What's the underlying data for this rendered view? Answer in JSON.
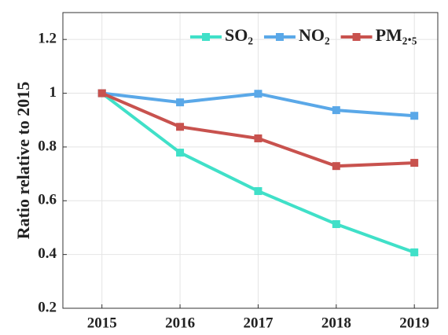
{
  "chart_data": {
    "type": "line",
    "ylabel": "Ratio relative to 2015",
    "x": [
      2015,
      2016,
      2017,
      2018,
      2019
    ],
    "xlim": [
      2014.5,
      2019.3
    ],
    "xticks": [
      2015,
      2016,
      2017,
      2018,
      2019
    ],
    "ylim": [
      0.2,
      1.3
    ],
    "yticks": [
      0.2,
      0.4,
      0.6,
      0.8,
      1,
      1.2
    ],
    "grid": true,
    "legend": "top-right",
    "series": [
      {
        "name": "SO₂",
        "color": "#40e0c8",
        "values": [
          1,
          0.779,
          0.636,
          0.513,
          0.408
        ]
      },
      {
        "name": "NO₂",
        "color": "#5aa8e8",
        "values": [
          1,
          0.966,
          0.998,
          0.937,
          0.916
        ]
      },
      {
        "name": "PM₂.₅",
        "color": "#c8524e",
        "values": [
          1,
          0.875,
          0.832,
          0.729,
          0.741
        ]
      }
    ]
  }
}
